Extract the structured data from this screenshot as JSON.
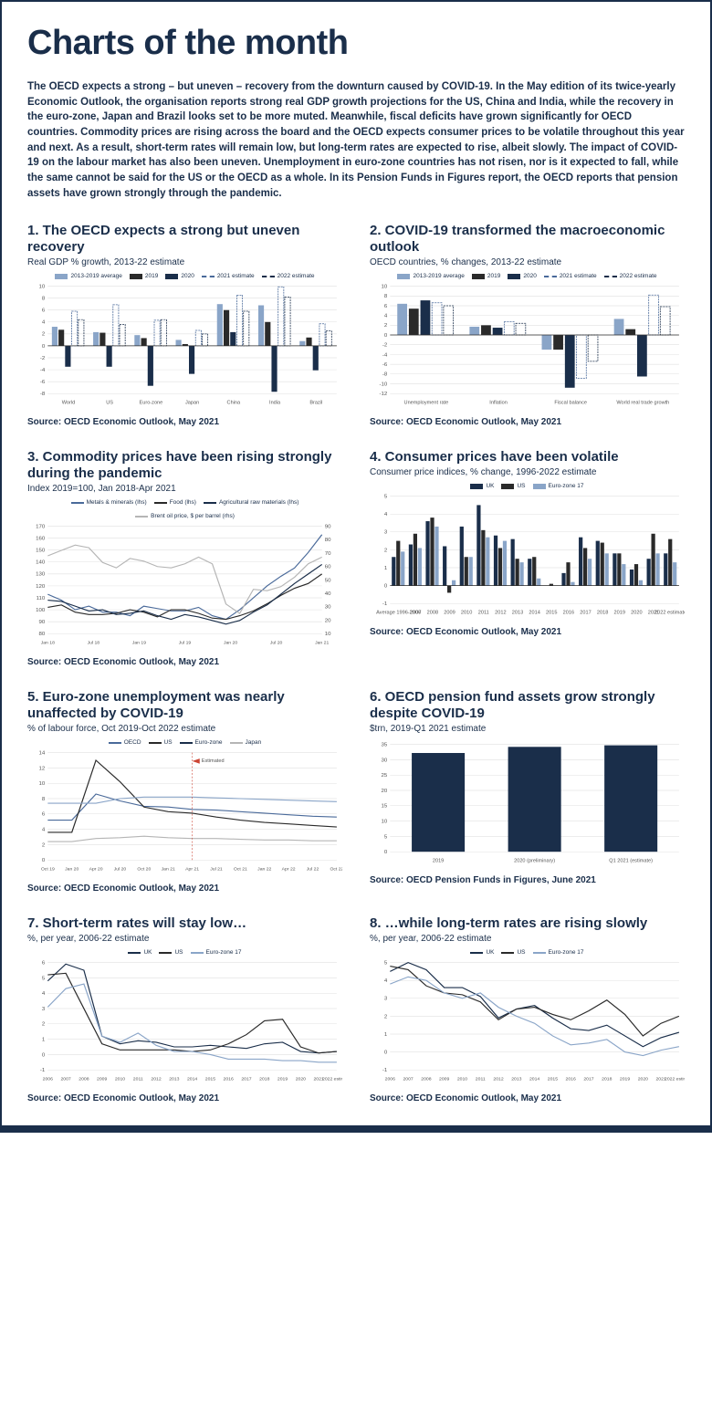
{
  "page_title": "Charts of the month",
  "intro_text": "The OECD expects a strong – but uneven – recovery from the downturn caused by COVID-19. In the May edition of its twice-yearly Economic Outlook, the organisation reports strong real GDP growth projections for the US, China and India, while the recovery in the euro-zone, Japan and Brazil looks set to be more muted. Meanwhile, fiscal deficits have grown significantly for OECD countries. Commodity prices are rising across the board and the OECD expects consumer prices to be volatile throughout this year and next. As a result, short-term rates will remain low, but long-term rates are expected to rise, albeit slowly. The impact of COVID-19 on the labour market has also been uneven. Unemployment in euro-zone countries has not risen, nor is it expected to fall, while the same cannot be said for the US or the OECD as a whole. In its Pension Funds in Figures report, the OECD reports that pension assets have grown strongly through the pandemic.",
  "colors": {
    "navy": "#1a2e4a",
    "mid_blue": "#4a6a9a",
    "light_blue": "#8aa5c8",
    "black": "#2a2a2a",
    "grey": "#b5b5b5",
    "grid": "#d8d8d8",
    "axis_text": "#555"
  },
  "charts": [
    {
      "id": "c1",
      "title": "1. The OECD expects a strong but uneven recovery",
      "subtitle": "Real GDP % growth, 2013-22 estimate",
      "source": "Source: OECD Economic Outlook, May 2021",
      "type": "grouped-bar",
      "legend": [
        {
          "label": "2013-2019 average",
          "color": "#8aa5c8",
          "style": "solid"
        },
        {
          "label": "2019",
          "color": "#2a2a2a",
          "style": "solid"
        },
        {
          "label": "2020",
          "color": "#1a2e4a",
          "style": "solid"
        },
        {
          "label": "2021 estimate",
          "color": "#4a6a9a",
          "style": "dash"
        },
        {
          "label": "2022 estimate",
          "color": "#1a2e4a",
          "style": "dash"
        }
      ],
      "ylim": [
        -8,
        10
      ],
      "ytick": 2,
      "categories": [
        "World",
        "US",
        "Euro-zone",
        "Japan",
        "China",
        "India",
        "Brazil"
      ],
      "series": {
        "avg": [
          3.2,
          2.3,
          1.8,
          1.0,
          7.0,
          6.8,
          0.8
        ],
        "y2019": [
          2.7,
          2.2,
          1.3,
          0.3,
          6.0,
          4.0,
          1.4
        ],
        "y2020": [
          -3.5,
          -3.5,
          -6.7,
          -4.7,
          2.3,
          -7.7,
          -4.1
        ],
        "y2021": [
          5.8,
          6.9,
          4.3,
          2.6,
          8.5,
          9.9,
          3.7
        ],
        "y2022": [
          4.4,
          3.6,
          4.4,
          2.0,
          5.8,
          8.2,
          2.5
        ]
      }
    },
    {
      "id": "c2",
      "title": "2. COVID-19 transformed the macroeconomic outlook",
      "subtitle": "OECD countries, % changes, 2013-22 estimate",
      "source": "Source: OECD Economic Outlook, May 2021",
      "type": "grouped-bar",
      "legend": [
        {
          "label": "2013-2019 average",
          "color": "#8aa5c8",
          "style": "solid"
        },
        {
          "label": "2019",
          "color": "#2a2a2a",
          "style": "solid"
        },
        {
          "label": "2020",
          "color": "#1a2e4a",
          "style": "solid"
        },
        {
          "label": "2021 estimate",
          "color": "#4a6a9a",
          "style": "dash"
        },
        {
          "label": "2022 estimate",
          "color": "#1a2e4a",
          "style": "dash"
        }
      ],
      "ylim": [
        -12,
        10
      ],
      "ytick": 2,
      "categories": [
        "Unemployment rate",
        "Inflation",
        "Fiscal balance",
        "World real trade growth"
      ],
      "series": {
        "avg": [
          6.4,
          1.7,
          -3.0,
          3.3
        ],
        "y2019": [
          5.4,
          2.0,
          -3.0,
          1.2
        ],
        "y2020": [
          7.1,
          1.5,
          -10.8,
          -8.5
        ],
        "y2021": [
          6.6,
          2.7,
          -8.9,
          8.2
        ],
        "y2022": [
          6.0,
          2.4,
          -5.4,
          5.8
        ]
      }
    },
    {
      "id": "c3",
      "title": "3. Commodity prices have been rising strongly during the pandemic",
      "subtitle": "Index 2019=100, Jan 2018-Apr 2021",
      "source": "Source: OECD Economic Outlook, May 2021",
      "type": "multi-line-dual",
      "legend": [
        {
          "label": "Metals & minerals (lhs)",
          "color": "#4a6a9a",
          "style": "line"
        },
        {
          "label": "Food (lhs)",
          "color": "#2a2a2a",
          "style": "line"
        },
        {
          "label": "Agricultural raw materials (lhs)",
          "color": "#1a2e4a",
          "style": "line"
        },
        {
          "label": "Brent oil price, $ per barrel (rhs)",
          "color": "#b5b5b5",
          "style": "line"
        }
      ],
      "ylim_left": [
        80,
        170
      ],
      "ytick_left": 10,
      "ylim_right": [
        10,
        90
      ],
      "ytick_right": 10,
      "x_labels": [
        "Jan 18",
        "Jul 18",
        "Jan 19",
        "Jul 19",
        "Jan 20",
        "Jul 20",
        "Jan 21"
      ],
      "series": {
        "metals": [
          113,
          108,
          100,
          103,
          98,
          98,
          95,
          103,
          101,
          99,
          99,
          102,
          95,
          92,
          100,
          110,
          120,
          128,
          135,
          148,
          163
        ],
        "food": [
          102,
          104,
          98,
          96,
          96,
          97,
          100,
          98,
          94,
          100,
          100,
          97,
          93,
          92,
          95,
          99,
          105,
          112,
          118,
          122,
          130
        ],
        "agri": [
          108,
          107,
          103,
          99,
          100,
          96,
          97,
          99,
          95,
          92,
          96,
          94,
          91,
          88,
          91,
          98,
          104,
          113,
          122,
          130,
          138
        ],
        "brent": [
          68,
          72,
          76,
          74,
          63,
          59,
          66,
          64,
          60,
          59,
          62,
          67,
          62,
          32,
          25,
          43,
          42,
          45,
          52,
          62,
          67
        ]
      }
    },
    {
      "id": "c4",
      "title": "4. Consumer prices have been volatile",
      "subtitle": "Consumer price indices, % change, 1996-2022 estimate",
      "source": "Source: OECD Economic Outlook, May 2021",
      "type": "grouped-bar",
      "legend": [
        {
          "label": "UK",
          "color": "#1a2e4a",
          "style": "solid"
        },
        {
          "label": "US",
          "color": "#2a2a2a",
          "style": "solid"
        },
        {
          "label": "Euro-zone 17",
          "color": "#8aa5c8",
          "style": "solid"
        }
      ],
      "ylim": [
        -1,
        5
      ],
      "ytick": 1,
      "categories": [
        "Average 1996-2006",
        "2007",
        "2008",
        "2009",
        "2010",
        "2011",
        "2012",
        "2013",
        "2014",
        "2015",
        "2016",
        "2017",
        "2018",
        "2019",
        "2020",
        "2021",
        "2022 estimate"
      ],
      "series": {
        "uk": [
          1.6,
          2.3,
          3.6,
          2.2,
          3.3,
          4.5,
          2.8,
          2.6,
          1.5,
          0.0,
          0.7,
          2.7,
          2.5,
          1.8,
          0.9,
          1.5,
          1.8
        ],
        "us": [
          2.5,
          2.9,
          3.8,
          -0.4,
          1.6,
          3.1,
          2.1,
          1.5,
          1.6,
          0.1,
          1.3,
          2.1,
          2.4,
          1.8,
          1.2,
          2.9,
          2.6
        ],
        "ez": [
          1.9,
          2.1,
          3.3,
          0.3,
          1.6,
          2.7,
          2.5,
          1.3,
          0.4,
          0.0,
          0.2,
          1.5,
          1.8,
          1.2,
          0.3,
          1.8,
          1.3
        ]
      }
    },
    {
      "id": "c5",
      "title": "5. Euro-zone unemployment was nearly unaffected by COVID-19",
      "subtitle": "% of labour force, Oct 2019-Oct 2022 estimate",
      "source": "Source: OECD Economic Outlook, May 2021",
      "type": "multi-line",
      "legend": [
        {
          "label": "OECD",
          "color": "#4a6a9a",
          "style": "line"
        },
        {
          "label": "US",
          "color": "#2a2a2a",
          "style": "line"
        },
        {
          "label": "Euro-zone",
          "color": "#1a2e4a",
          "style": "line"
        },
        {
          "label": "Japan",
          "color": "#b5b5b5",
          "style": "line"
        }
      ],
      "ylim": [
        0,
        14
      ],
      "ytick": 2,
      "x_labels": [
        "Oct 19",
        "Jan 20",
        "Apr 20",
        "Jul 20",
        "Oct 20",
        "Jan 21",
        "Apr 21",
        "Jul 21",
        "Oct 21",
        "Jan 22",
        "Apr 22",
        "Jul 22",
        "Oct 22"
      ],
      "estimated_from": 6,
      "series": {
        "oecd": [
          5.2,
          5.2,
          8.6,
          7.7,
          7.0,
          6.9,
          6.6,
          6.5,
          6.3,
          6.1,
          5.9,
          5.7,
          5.6
        ],
        "us": [
          3.6,
          3.6,
          13.0,
          10.2,
          6.9,
          6.3,
          6.1,
          5.6,
          5.2,
          4.9,
          4.7,
          4.5,
          4.3
        ],
        "ez": [
          7.4,
          7.4,
          7.4,
          8.0,
          8.2,
          8.2,
          8.2,
          8.1,
          8.0,
          7.9,
          7.8,
          7.7,
          7.6
        ],
        "japan": [
          2.4,
          2.4,
          2.8,
          2.9,
          3.1,
          2.9,
          2.8,
          2.8,
          2.7,
          2.6,
          2.6,
          2.5,
          2.5
        ]
      }
    },
    {
      "id": "c6",
      "title": "6. OECD pension fund assets grow strongly despite COVID-19",
      "subtitle": "$trn, 2019-Q1 2021 estimate",
      "source": "Source: OECD Pension Funds in Figures, June 2021",
      "type": "bar",
      "legend": [],
      "ylim": [
        0,
        35
      ],
      "ytick": 5,
      "categories": [
        "2019",
        "2020 (preliminary)",
        "Q1 2021 (estimate)"
      ],
      "values": [
        32.2,
        34.2,
        34.7
      ],
      "bar_color": "#1a2e4a"
    },
    {
      "id": "c7",
      "title": "7. Short-term rates will stay low…",
      "subtitle": "%, per year, 2006-22 estimate",
      "source": "Source: OECD Economic Outlook, May 2021",
      "type": "multi-line",
      "legend": [
        {
          "label": "UK",
          "color": "#1a2e4a",
          "style": "line"
        },
        {
          "label": "US",
          "color": "#2a2a2a",
          "style": "line"
        },
        {
          "label": "Euro-zone 17",
          "color": "#8aa5c8",
          "style": "line"
        }
      ],
      "ylim": [
        -1,
        6
      ],
      "ytick": 1,
      "x_labels": [
        "2006",
        "2007",
        "2008",
        "2009",
        "2010",
        "2011",
        "2012",
        "2013",
        "2014",
        "2015",
        "2016",
        "2017",
        "2018",
        "2019",
        "2020",
        "2021",
        "2022 estimate"
      ],
      "series": {
        "uk": [
          4.8,
          5.9,
          5.5,
          1.2,
          0.7,
          0.9,
          0.8,
          0.5,
          0.5,
          0.6,
          0.5,
          0.4,
          0.7,
          0.8,
          0.2,
          0.1,
          0.2
        ],
        "us": [
          5.2,
          5.3,
          3.0,
          0.7,
          0.3,
          0.3,
          0.3,
          0.3,
          0.2,
          0.3,
          0.7,
          1.3,
          2.2,
          2.3,
          0.5,
          0.1,
          0.2
        ],
        "ez": [
          3.1,
          4.3,
          4.6,
          1.2,
          0.8,
          1.4,
          0.6,
          0.2,
          0.2,
          0.0,
          -0.3,
          -0.3,
          -0.3,
          -0.4,
          -0.4,
          -0.5,
          -0.5
        ]
      }
    },
    {
      "id": "c8",
      "title": "8. …while long-term rates are rising slowly",
      "subtitle": "%, per year, 2006-22 estimate",
      "source": "Source: OECD Economic Outlook, May 2021",
      "type": "multi-line",
      "legend": [
        {
          "label": "UK",
          "color": "#1a2e4a",
          "style": "line"
        },
        {
          "label": "US",
          "color": "#2a2a2a",
          "style": "line"
        },
        {
          "label": "Euro-zone 17",
          "color": "#8aa5c8",
          "style": "line"
        }
      ],
      "ylim": [
        -1,
        5
      ],
      "ytick": 1,
      "x_labels": [
        "2006",
        "2007",
        "2008",
        "2009",
        "2010",
        "2011",
        "2012",
        "2013",
        "2014",
        "2015",
        "2016",
        "2017",
        "2018",
        "2019",
        "2020",
        "2021",
        "2022 estimate"
      ],
      "series": {
        "uk": [
          4.5,
          5.0,
          4.6,
          3.6,
          3.6,
          3.1,
          1.9,
          2.4,
          2.6,
          1.9,
          1.3,
          1.2,
          1.5,
          0.9,
          0.3,
          0.8,
          1.1
        ],
        "us": [
          4.8,
          4.6,
          3.7,
          3.3,
          3.2,
          2.8,
          1.8,
          2.4,
          2.5,
          2.1,
          1.8,
          2.3,
          2.9,
          2.1,
          0.9,
          1.6,
          2.0
        ],
        "ez": [
          3.8,
          4.2,
          4.0,
          3.3,
          3.0,
          3.3,
          2.5,
          2.0,
          1.6,
          0.9,
          0.4,
          0.5,
          0.7,
          0.0,
          -0.2,
          0.1,
          0.3
        ]
      }
    }
  ]
}
